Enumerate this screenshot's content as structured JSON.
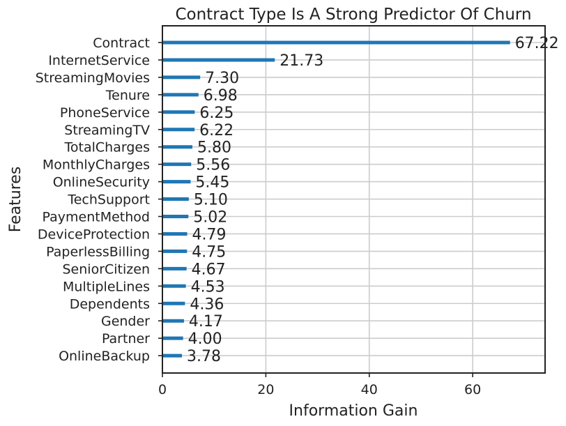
{
  "chart_data": {
    "type": "bar",
    "orientation": "horizontal",
    "title": "Contract Type Is A Strong Predictor Of Churn",
    "xlabel": "Information Gain",
    "ylabel": "Features",
    "xlim": [
      0,
      74
    ],
    "xticks": [
      0,
      20,
      40,
      60
    ],
    "xtick_labels": [
      "0",
      "20",
      "40",
      "60"
    ],
    "grid": true,
    "bar_color": "#1f77b4",
    "categories": [
      "Contract",
      "InternetService",
      "StreamingMovies",
      "Tenure",
      "PhoneService",
      "StreamingTV",
      "TotalCharges",
      "MonthlyCharges",
      "OnlineSecurity",
      "TechSupport",
      "PaymentMethod",
      "DeviceProtection",
      "PaperlessBilling",
      "SeniorCitizen",
      "MultipleLines",
      "Dependents",
      "Gender",
      "Partner",
      "OnlineBackup"
    ],
    "values": [
      67.22,
      21.73,
      7.3,
      6.98,
      6.25,
      6.22,
      5.8,
      5.56,
      5.45,
      5.1,
      5.02,
      4.79,
      4.75,
      4.67,
      4.53,
      4.36,
      4.17,
      4.0,
      3.78
    ],
    "value_labels": [
      "67.22",
      "21.73",
      "7.30",
      "6.98",
      "6.25",
      "6.22",
      "5.80",
      "5.56",
      "5.45",
      "5.10",
      "5.02",
      "4.79",
      "4.75",
      "4.67",
      "4.53",
      "4.36",
      "4.17",
      "4.00",
      "3.78"
    ]
  }
}
